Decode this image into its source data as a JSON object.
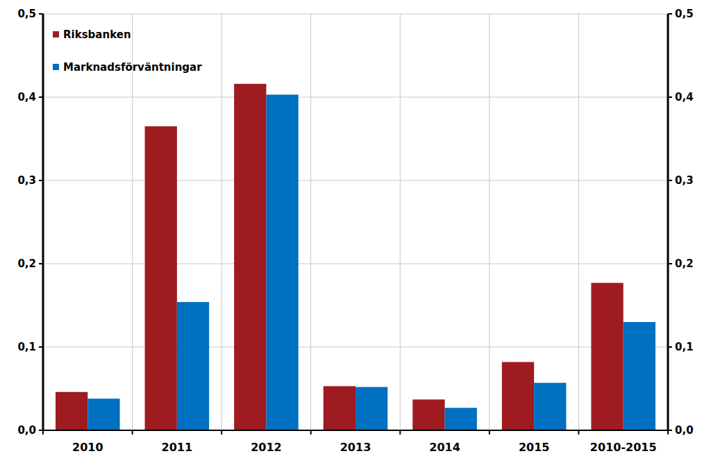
{
  "chart_data": {
    "type": "bar",
    "categories": [
      "2010",
      "2011",
      "2012",
      "2013",
      "2014",
      "2015",
      "2010-2015"
    ],
    "series": [
      {
        "name": "Riksbanken",
        "color": "#9e1b20",
        "values": [
          0.046,
          0.365,
          0.416,
          0.053,
          0.037,
          0.082,
          0.177
        ]
      },
      {
        "name": "Marknadsförväntningar",
        "color": "#0070c0",
        "values": [
          0.038,
          0.154,
          0.403,
          0.052,
          0.027,
          0.057,
          0.13
        ]
      }
    ],
    "ylim": [
      0,
      0.5
    ],
    "yticks": [
      {
        "value": 0,
        "label": "0,0"
      },
      {
        "value": 0.1,
        "label": "0,1"
      },
      {
        "value": 0.2,
        "label": "0,2"
      },
      {
        "value": 0.3,
        "label": "0,3"
      },
      {
        "value": 0.4,
        "label": "0,4"
      },
      {
        "value": 0.5,
        "label": "0,5"
      }
    ],
    "grid": true,
    "legend": "top-left"
  }
}
